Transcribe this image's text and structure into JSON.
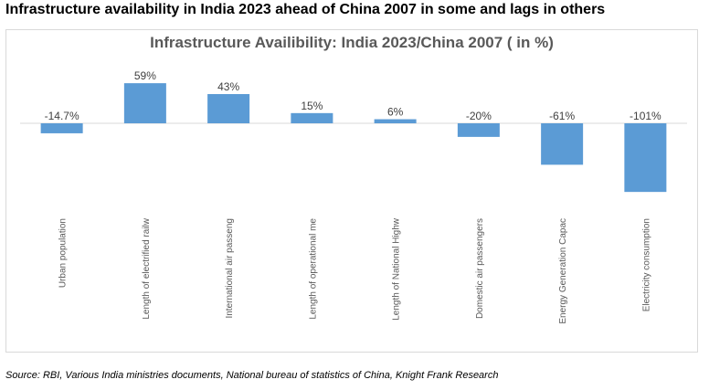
{
  "heading": "Infrastructure availability in India 2023 ahead of China 2007 in some and lags in others",
  "source": "Source: RBI, Various India ministries documents, National bureau of statistics of China, Knight Frank Research",
  "colors": {
    "bar": "#5b9bd5",
    "axis": "#d9d9d9",
    "title": "#595959"
  },
  "chart_data": {
    "type": "bar",
    "title": "Infrastructure Availibility: India 2023/China 2007 ( in %)",
    "xlabel": "",
    "ylabel": "",
    "grid": false,
    "legend": "none",
    "ylim": [
      -110,
      65
    ],
    "categories": [
      "Urban population",
      "Length of electrified railw",
      "International air passeng",
      "Length of operational me",
      "Length of National Highw",
      "Domestic air passengers",
      "Energy Generation Capac",
      "Electricity consumption"
    ],
    "values": [
      -14.7,
      59,
      43,
      15,
      6,
      -20,
      -61,
      -101
    ],
    "data_labels": [
      "-14.7%",
      "59%",
      "43%",
      "15%",
      "6%",
      "-20%",
      "-61%",
      "-101%"
    ]
  }
}
